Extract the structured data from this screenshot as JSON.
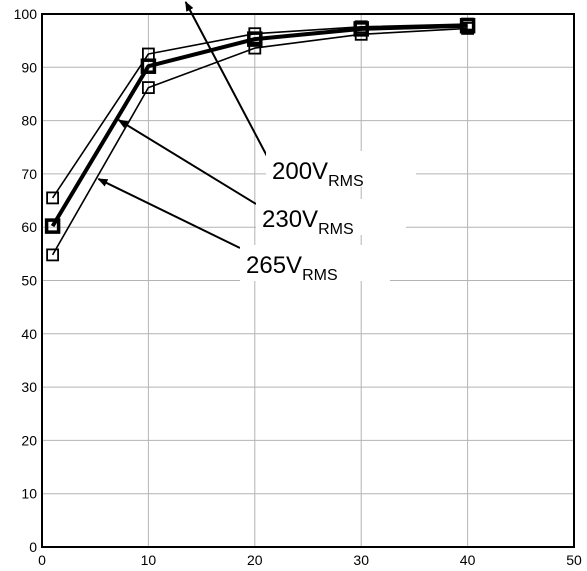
{
  "chart_data": {
    "type": "line",
    "title": "",
    "xlabel": "",
    "ylabel": "",
    "xlim": [
      0,
      50
    ],
    "ylim": [
      0,
      100
    ],
    "x_ticks": [
      "0",
      "10",
      "20",
      "30",
      "40",
      "50"
    ],
    "y_ticks": [
      "0",
      "10",
      "20",
      "30",
      "40",
      "50",
      "60",
      "70",
      "80",
      "90",
      "100"
    ],
    "grid": true,
    "marker": "open-square",
    "series": [
      {
        "label_main": "200V",
        "label_sub": "RMS",
        "emphasis": "normal",
        "points": [
          [
            1,
            65.5
          ],
          [
            10,
            92.5
          ],
          [
            20,
            96.3
          ],
          [
            30,
            97.6
          ],
          [
            40,
            98.1
          ]
        ]
      },
      {
        "label_main": "230V",
        "label_sub": "RMS",
        "emphasis": "bold",
        "points": [
          [
            1,
            60.2
          ],
          [
            10,
            90.2
          ],
          [
            20,
            95.3
          ],
          [
            30,
            97.2
          ],
          [
            40,
            97.8
          ]
        ]
      },
      {
        "label_main": "265V",
        "label_sub": "RMS",
        "emphasis": "normal",
        "points": [
          [
            1,
            54.8
          ],
          [
            10,
            86.2
          ],
          [
            20,
            93.6
          ],
          [
            30,
            96.2
          ],
          [
            40,
            97.3
          ]
        ]
      }
    ]
  }
}
